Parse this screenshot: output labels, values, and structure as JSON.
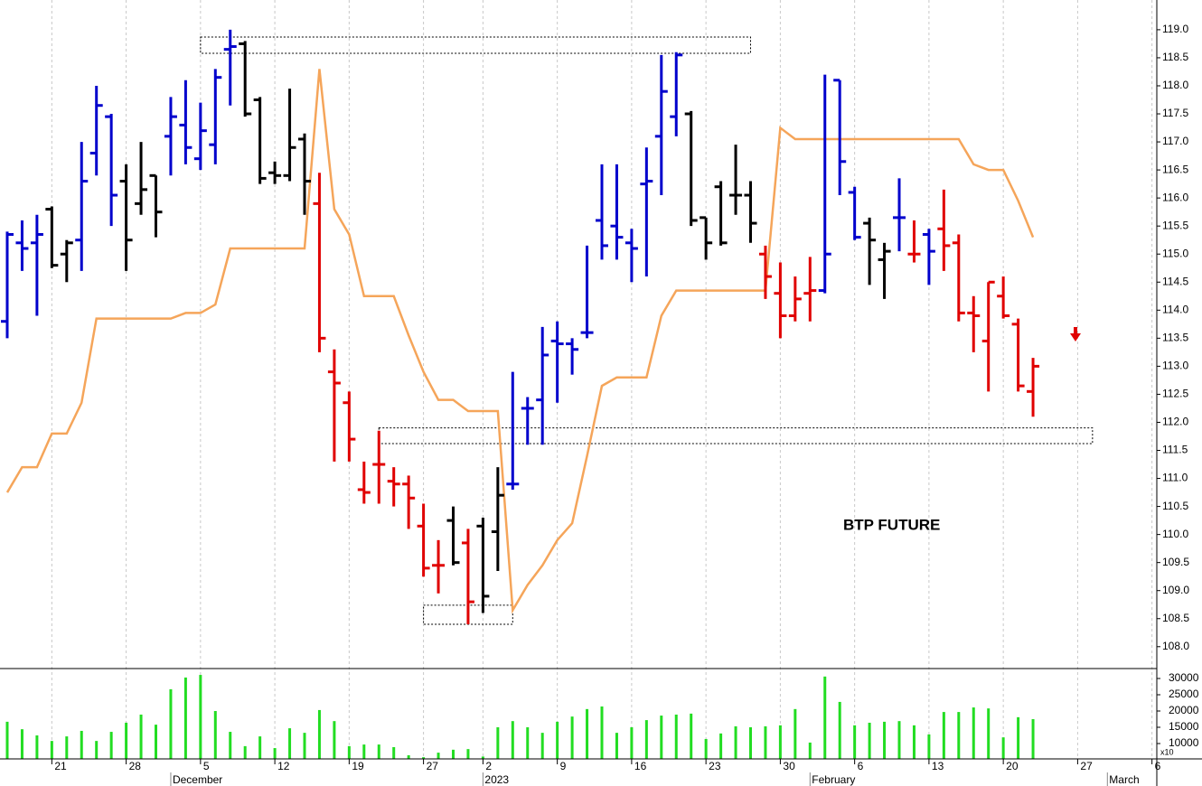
{
  "chart_data": {
    "type": "ohlc",
    "annotation": "BTP FUTURE",
    "categories": [
      null,
      null,
      null,
      "21",
      null,
      null,
      null,
      null,
      "28",
      null,
      null,
      null,
      null,
      "5",
      null,
      null,
      null,
      null,
      "12",
      null,
      null,
      null,
      null,
      "19",
      null,
      null,
      null,
      null,
      "27",
      null,
      null,
      null,
      "2",
      null,
      null,
      null,
      null,
      "9",
      null,
      null,
      null,
      null,
      "16",
      null,
      null,
      null,
      null,
      "23",
      null,
      null,
      null,
      null,
      "30",
      null,
      null,
      null,
      null,
      "6",
      null,
      null,
      null,
      null,
      "13",
      null,
      null,
      null,
      null,
      "20",
      null,
      null,
      null,
      null,
      "27",
      null,
      null,
      null,
      null,
      "6"
    ],
    "months": [
      null,
      null,
      null,
      null,
      null,
      null,
      null,
      null,
      null,
      null,
      null,
      "December",
      null,
      null,
      null,
      null,
      null,
      null,
      null,
      null,
      null,
      null,
      null,
      null,
      null,
      null,
      null,
      null,
      null,
      null,
      null,
      null,
      "2023",
      null,
      null,
      null,
      null,
      null,
      null,
      null,
      null,
      null,
      null,
      null,
      null,
      null,
      null,
      null,
      null,
      null,
      null,
      null,
      null,
      null,
      "February",
      null,
      null,
      null,
      null,
      null,
      null,
      null,
      null,
      null,
      null,
      null,
      null,
      null,
      null,
      null,
      null,
      null,
      null,
      null,
      "March",
      null,
      null,
      null
    ],
    "open": [
      113.8,
      115.2,
      115.2,
      115.8,
      115.0,
      115.25,
      116.8,
      117.45,
      116.3,
      115.9,
      116.4,
      117.1,
      117.3,
      116.7,
      116.95,
      118.65,
      118.75,
      117.75,
      116.45,
      116.4,
      117.05,
      115.9,
      112.9,
      112.35,
      110.8,
      111.25,
      110.95,
      110.9,
      110.15,
      109.45,
      110.25,
      109.85,
      110.15,
      110.05,
      110.9,
      112.25,
      112.4,
      113.45,
      113.4,
      113.6,
      115.6,
      115.5,
      115.2,
      116.25,
      117.1,
      117.45,
      117.5,
      115.65,
      116.2,
      116.05,
      116.05,
      115.0,
      114.3,
      113.9,
      114.3,
      114.35,
      118.1,
      116.1,
      115.55,
      114.9,
      115.65,
      115.0,
      115.35,
      115.45,
      115.2,
      113.95,
      113.45,
      114.25,
      113.75,
      112.55,
      null,
      null,
      null,
      null,
      null,
      null,
      null,
      null
    ],
    "high": [
      115.4,
      115.6,
      115.7,
      115.85,
      115.25,
      117.0,
      118.0,
      117.5,
      116.6,
      117.0,
      116.4,
      117.8,
      118.1,
      117.7,
      118.3,
      119.0,
      118.8,
      117.8,
      116.65,
      117.95,
      117.15,
      116.45,
      113.3,
      112.55,
      111.3,
      111.85,
      111.2,
      111.05,
      110.55,
      109.9,
      110.5,
      110.1,
      110.3,
      111.2,
      112.9,
      112.45,
      113.7,
      113.8,
      113.5,
      115.15,
      116.6,
      116.6,
      115.45,
      116.9,
      118.55,
      118.6,
      117.55,
      115.65,
      116.3,
      116.95,
      116.3,
      115.15,
      114.85,
      114.6,
      114.95,
      118.2,
      118.1,
      116.2,
      115.65,
      115.2,
      116.35,
      115.6,
      115.45,
      116.15,
      115.35,
      114.25,
      114.5,
      114.6,
      113.85,
      113.15,
      null,
      null,
      null,
      null,
      null,
      null,
      null,
      null
    ],
    "low": [
      113.5,
      114.7,
      113.9,
      114.75,
      114.5,
      114.7,
      116.4,
      115.5,
      114.7,
      115.7,
      115.3,
      116.4,
      116.6,
      116.5,
      116.6,
      117.65,
      117.45,
      116.25,
      116.25,
      116.3,
      115.7,
      113.25,
      111.3,
      111.3,
      110.55,
      110.55,
      110.5,
      110.1,
      109.25,
      108.95,
      109.45,
      108.4,
      108.6,
      109.35,
      110.8,
      111.6,
      111.6,
      112.35,
      112.85,
      113.5,
      114.9,
      114.9,
      114.5,
      114.6,
      116.05,
      117.1,
      115.5,
      114.9,
      115.15,
      115.7,
      115.2,
      114.2,
      113.5,
      113.8,
      113.8,
      114.3,
      116.05,
      115.25,
      114.45,
      114.2,
      115.05,
      114.85,
      114.45,
      114.7,
      113.8,
      113.25,
      112.55,
      113.85,
      112.55,
      112.1,
      null,
      null,
      null,
      null,
      null,
      null,
      null,
      null
    ],
    "close": [
      115.35,
      115.1,
      115.35,
      114.8,
      115.2,
      116.3,
      117.65,
      116.05,
      115.25,
      116.15,
      115.75,
      117.45,
      116.9,
      117.2,
      118.15,
      118.7,
      117.5,
      116.35,
      116.4,
      116.9,
      116.3,
      113.5,
      112.7,
      111.7,
      110.75,
      111.25,
      110.9,
      110.65,
      109.4,
      109.45,
      109.5,
      108.8,
      108.9,
      110.7,
      110.9,
      112.25,
      113.2,
      113.4,
      113.3,
      113.6,
      115.15,
      115.3,
      115.1,
      116.3,
      117.9,
      118.55,
      115.6,
      115.2,
      115.2,
      116.05,
      115.55,
      114.6,
      113.9,
      114.2,
      114.35,
      115.0,
      116.65,
      115.3,
      115.25,
      115.05,
      115.65,
      115.0,
      115.05,
      115.15,
      113.95,
      113.9,
      114.5,
      113.9,
      112.65,
      113.0,
      null,
      null,
      null,
      null,
      null,
      null,
      null,
      null
    ],
    "bar_colors": [
      "#0000cc",
      "#0000cc",
      "#0000cc",
      "#000000",
      "#000000",
      "#0000cc",
      "#0000cc",
      "#0000cc",
      "#000000",
      "#000000",
      "#000000",
      "#0000cc",
      "#0000cc",
      "#0000cc",
      "#0000cc",
      "#0000cc",
      "#000000",
      "#000000",
      "#000000",
      "#000000",
      "#000000",
      "#e00000",
      "#e00000",
      "#e00000",
      "#e00000",
      "#e00000",
      "#e00000",
      "#e00000",
      "#e00000",
      "#e00000",
      "#000000",
      "#e00000",
      "#000000",
      "#000000",
      "#0000cc",
      "#0000cc",
      "#0000cc",
      "#0000cc",
      "#0000cc",
      "#0000cc",
      "#0000cc",
      "#0000cc",
      "#0000cc",
      "#0000cc",
      "#0000cc",
      "#0000cc",
      "#000000",
      "#000000",
      "#000000",
      "#000000",
      "#000000",
      "#e00000",
      "#e00000",
      "#e00000",
      "#e00000",
      "#0000cc",
      "#0000cc",
      "#0000cc",
      "#000000",
      "#000000",
      "#0000cc",
      "#e00000",
      "#0000cc",
      "#e00000",
      "#e00000",
      "#e00000",
      "#e00000",
      "#e00000",
      "#e00000",
      "#e00000",
      null,
      null,
      null,
      null,
      null,
      null,
      null,
      null
    ],
    "overlay": {
      "color": "#f5a55a",
      "values": [
        110.75,
        111.2,
        111.2,
        111.8,
        111.8,
        112.35,
        113.85,
        113.85,
        113.85,
        113.85,
        113.85,
        113.85,
        113.95,
        113.95,
        114.1,
        115.1,
        115.1,
        115.1,
        115.1,
        115.1,
        115.1,
        118.3,
        115.8,
        115.35,
        114.25,
        114.25,
        114.25,
        113.55,
        112.9,
        112.4,
        112.4,
        112.2,
        112.2,
        112.2,
        108.65,
        109.1,
        109.45,
        109.9,
        110.2,
        111.4,
        112.65,
        112.8,
        112.8,
        112.8,
        113.9,
        114.35,
        114.35,
        114.35,
        114.35,
        114.35,
        114.35,
        114.35,
        117.25,
        117.05,
        117.05,
        117.05,
        117.05,
        117.05,
        117.05,
        117.05,
        117.05,
        117.05,
        117.05,
        117.05,
        117.05,
        116.6,
        116.5,
        116.5,
        115.95,
        115.3,
        null,
        null,
        null,
        null,
        null,
        null,
        null,
        null
      ]
    },
    "zones": [
      {
        "start": 13,
        "end": 50,
        "low": 118.58,
        "high": 118.87
      },
      {
        "start": 25,
        "end": 73,
        "low": 111.62,
        "high": 111.9
      },
      {
        "start": 28,
        "end": 34,
        "low": 108.4,
        "high": 108.74
      }
    ],
    "ylim": [
      107.61,
      119.53
    ],
    "yticks": [
      {
        "value": 108,
        "label": "108.0"
      },
      {
        "value": 108.5,
        "label": "108.5"
      },
      {
        "value": 109,
        "label": "109.0"
      },
      {
        "value": 109.5,
        "label": "109.5"
      },
      {
        "value": 110,
        "label": "110.0"
      },
      {
        "value": 110.5,
        "label": "110.5"
      },
      {
        "value": 111,
        "label": "111.0"
      },
      {
        "value": 111.5,
        "label": "111.5"
      },
      {
        "value": 112,
        "label": "112.0"
      },
      {
        "value": 112.5,
        "label": "112.5"
      },
      {
        "value": 113,
        "label": "113.0"
      },
      {
        "value": 113.5,
        "label": "113.5"
      },
      {
        "value": 114,
        "label": "114.0"
      },
      {
        "value": 114.5,
        "label": "114.5"
      },
      {
        "value": 115,
        "label": "115.0"
      },
      {
        "value": 115.5,
        "label": "115.5"
      },
      {
        "value": 116,
        "label": "116.0"
      },
      {
        "value": 116.5,
        "label": "116.5"
      },
      {
        "value": 117,
        "label": "117.0"
      },
      {
        "value": 117.5,
        "label": "117.5"
      },
      {
        "value": 118,
        "label": "118.0"
      },
      {
        "value": 118.5,
        "label": "118.5"
      },
      {
        "value": 119,
        "label": "119.0"
      }
    ],
    "volume": {
      "type": "bar",
      "color": "#22dd22",
      "unit_label": "x10",
      "values": [
        16700,
        14400,
        12500,
        10800,
        12200,
        13900,
        10800,
        13600,
        16400,
        18900,
        15800,
        26700,
        30300,
        31100,
        20000,
        13600,
        9200,
        12200,
        8600,
        14700,
        13300,
        20300,
        16900,
        9200,
        9700,
        9700,
        8900,
        6400,
        5800,
        7200,
        8100,
        8300,
        6000,
        15000,
        16900,
        15000,
        13300,
        16700,
        18300,
        20600,
        21400,
        13300,
        15000,
        17200,
        18600,
        18900,
        19200,
        11400,
        13100,
        15300,
        15000,
        15300,
        15600,
        20600,
        10300,
        30600,
        22800,
        15600,
        16400,
        16700,
        16900,
        15600,
        12800,
        19700,
        19700,
        21100,
        20800,
        11900,
        18100,
        17500,
        null,
        null,
        null,
        null,
        null,
        null,
        null,
        null
      ],
      "ylim": [
        5280,
        32780
      ],
      "yticks": [
        10000,
        15000,
        20000,
        25000,
        30000
      ]
    }
  }
}
